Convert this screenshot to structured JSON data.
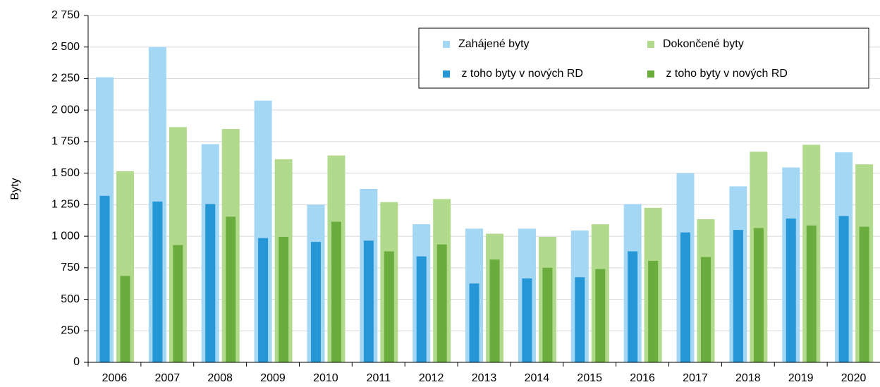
{
  "chart_data": {
    "type": "bar",
    "y_label": "Byty",
    "categories": [
      "2006",
      "2007",
      "2008",
      "2009",
      "2010",
      "2011",
      "2012",
      "2013",
      "2014",
      "2015",
      "2016",
      "2017",
      "2018",
      "2019",
      "2020"
    ],
    "series": [
      {
        "name": "Zahájené byty",
        "color": "#a3d7f4",
        "values": [
          2260,
          2500,
          1730,
          2075,
          1250,
          1375,
          1095,
          1060,
          1060,
          1045,
          1255,
          1500,
          1395,
          1545,
          1665
        ]
      },
      {
        "name": " z toho byty v nových RD",
        "color": "#2596d6",
        "values": [
          1320,
          1275,
          1255,
          985,
          955,
          965,
          840,
          625,
          665,
          675,
          880,
          1030,
          1050,
          1140,
          1160
        ]
      },
      {
        "name": "Dokončené byty",
        "color": "#b2da8c",
        "values": [
          1515,
          1865,
          1850,
          1610,
          1640,
          1270,
          1295,
          1020,
          995,
          1095,
          1225,
          1135,
          1670,
          1725,
          1570
        ]
      },
      {
        "name": " z toho byty v nových RD",
        "color": "#6aad3e",
        "values": [
          685,
          930,
          1155,
          995,
          1115,
          880,
          935,
          815,
          750,
          740,
          805,
          835,
          1065,
          1085,
          1075
        ]
      }
    ],
    "ylim": [
      0,
      2750
    ],
    "yticks": [
      0,
      250,
      500,
      750,
      {
        "value": 1000,
        "label": "1 000"
      },
      {
        "value": 1250,
        "label": "1 250"
      },
      {
        "value": 1500,
        "label": "1 500"
      },
      {
        "value": 1750,
        "label": "1 750"
      },
      {
        "value": 2000,
        "label": "2 000"
      },
      {
        "value": 2250,
        "label": "2 250"
      },
      {
        "value": 2500,
        "label": "2 500"
      },
      {
        "value": 2750,
        "label": "2 750"
      }
    ],
    "grid": true
  }
}
